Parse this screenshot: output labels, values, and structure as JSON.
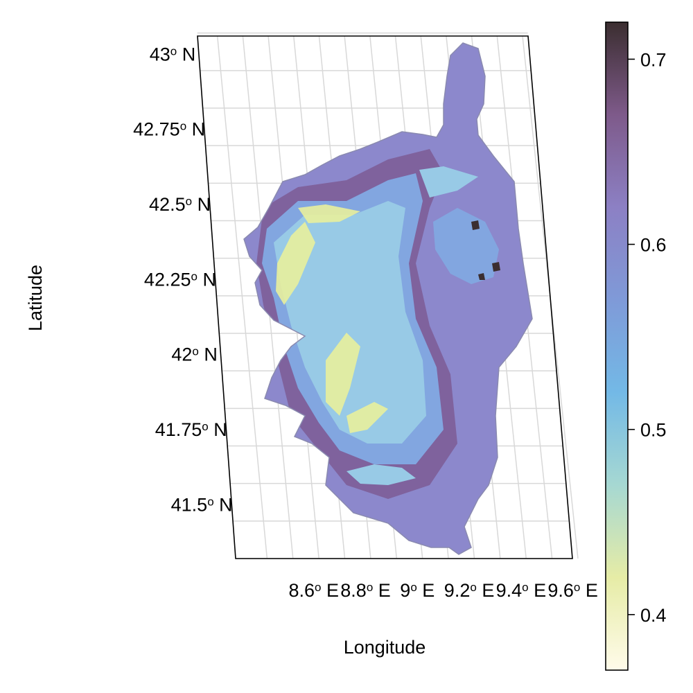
{
  "map": {
    "x_axis_label": "Longitude",
    "y_axis_label": "Latitude",
    "latitude_ticks": [
      {
        "value": 43.0,
        "num": "43",
        "hemisphere": "N"
      },
      {
        "value": 42.75,
        "num": "42.75",
        "hemisphere": "N"
      },
      {
        "value": 42.5,
        "num": "42.5",
        "hemisphere": "N"
      },
      {
        "value": 42.25,
        "num": "42.25",
        "hemisphere": "N"
      },
      {
        "value": 42.0,
        "num": "42",
        "hemisphere": "N"
      },
      {
        "value": 41.75,
        "num": "41.75",
        "hemisphere": "N"
      },
      {
        "value": 41.5,
        "num": "41.5",
        "hemisphere": "N"
      }
    ],
    "longitude_ticks": [
      {
        "value": 8.6,
        "num": "8.6",
        "hemisphere": "E"
      },
      {
        "value": 8.8,
        "num": "8.8",
        "hemisphere": "E"
      },
      {
        "value": 9.0,
        "num": "9",
        "hemisphere": "E"
      },
      {
        "value": 9.2,
        "num": "9.2",
        "hemisphere": "E"
      },
      {
        "value": 9.4,
        "num": "9.4",
        "hemisphere": "E"
      },
      {
        "value": 9.6,
        "num": "9.6",
        "hemisphere": "E"
      }
    ],
    "colorbar": {
      "range": [
        0.37,
        0.72
      ],
      "ticks": [
        {
          "value": 0.7,
          "label": "0.7"
        },
        {
          "value": 0.6,
          "label": "0.6"
        },
        {
          "value": 0.5,
          "label": "0.5"
        },
        {
          "value": 0.4,
          "label": "0.4"
        }
      ],
      "colors": [
        "#fffbea",
        "#e6eca6",
        "#a6d8d2",
        "#73b9e6",
        "#7f9ad8",
        "#8c80c4",
        "#7e5a8a",
        "#3b2e30"
      ]
    },
    "colors": {
      "coast_fill": "#8c8fd0",
      "lowland": "#8c88cc",
      "ridge": "#7d5c94",
      "midland": "#82a6e0",
      "upland": "#98cae6",
      "peak": "#e8ef9c",
      "grid": "#d8d8d8",
      "frame": "#000000"
    }
  }
}
